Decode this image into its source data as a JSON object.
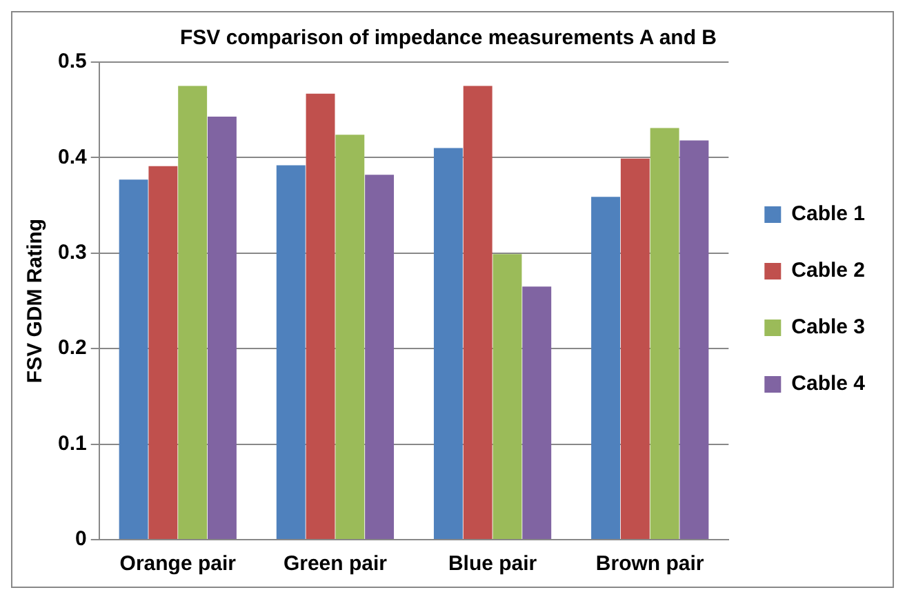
{
  "chart_data": {
    "type": "bar",
    "title": "FSV comparison of impedance measurements A and B",
    "ylabel": "FSV GDM Rating",
    "categories": [
      "Orange pair",
      "Green pair",
      "Blue pair",
      "Brown pair"
    ],
    "series": [
      {
        "name": "Cable 1",
        "color": "#4f81bd",
        "values": [
          0.377,
          0.392,
          0.41,
          0.359
        ]
      },
      {
        "name": "Cable 2",
        "color": "#c0504d",
        "values": [
          0.391,
          0.467,
          0.475,
          0.399
        ]
      },
      {
        "name": "Cable 3",
        "color": "#9bbb59",
        "values": [
          0.475,
          0.424,
          0.299,
          0.431
        ]
      },
      {
        "name": "Cable 4",
        "color": "#8064a2",
        "values": [
          0.443,
          0.382,
          0.265,
          0.418
        ]
      }
    ],
    "ylim": [
      0,
      0.5
    ],
    "yticks": [
      0,
      0.1,
      0.2,
      0.3,
      0.4,
      0.5
    ],
    "grid": "y",
    "legend": "right"
  }
}
